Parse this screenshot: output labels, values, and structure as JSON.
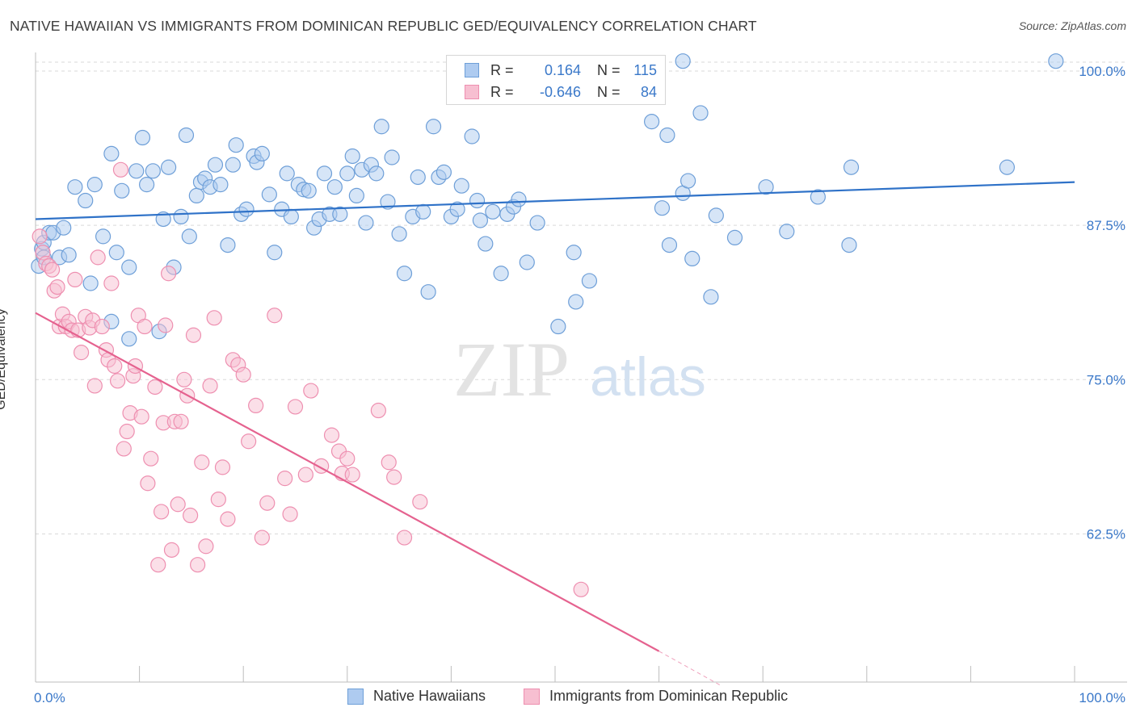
{
  "title": "NATIVE HAWAIIAN VS IMMIGRANTS FROM DOMINICAN REPUBLIC GED/EQUIVALENCY CORRELATION CHART",
  "source": "Source: ZipAtlas.com",
  "watermark": {
    "zip": "ZIP",
    "atlas": "atlas"
  },
  "legend_top": {
    "rows": [
      {
        "r_label": "R =",
        "r_value": "0.164",
        "n_label": "N =",
        "n_value": "115"
      },
      {
        "r_label": "R =",
        "r_value": "-0.646",
        "n_label": "N =",
        "n_value": "84"
      }
    ]
  },
  "legend_bottom": {
    "items": [
      {
        "label": "Native Hawaiians"
      },
      {
        "label": "Immigrants from Dominican Republic"
      }
    ]
  },
  "colors": {
    "blue_fill": "#aecbf0",
    "blue_stroke": "#6e9fd8",
    "blue_line": "#2f72c8",
    "pink_fill": "#f7bfd1",
    "pink_stroke": "#ee8fb0",
    "pink_line": "#e5628f",
    "grid": "#d9d9d9",
    "tick_text": "#3a78c9"
  },
  "chart_data": {
    "type": "scatter",
    "title": "NATIVE HAWAIIAN VS IMMIGRANTS FROM DOMINICAN REPUBLIC GED/EQUIVALENCY CORRELATION CHART",
    "xlabel": "",
    "ylabel": "GED/Equivalency",
    "xlim": [
      0,
      100
    ],
    "ylim": [
      50.5,
      101.5
    ],
    "x_tick_labels": [
      {
        "value": 0,
        "label": "0.0%"
      },
      {
        "value": 100,
        "label": "100.0%"
      }
    ],
    "y_ticks": [
      {
        "value": 100,
        "label": "100.0%"
      },
      {
        "value": 87.5,
        "label": "87.5%"
      },
      {
        "value": 75,
        "label": "75.0%"
      },
      {
        "value": 62.5,
        "label": "62.5%"
      }
    ],
    "x_minor_ticks": [
      0,
      10,
      20,
      30,
      40,
      50,
      60,
      70,
      80,
      90,
      100
    ],
    "grid": true,
    "series": [
      {
        "name": "Native Hawaiians",
        "color": "blue",
        "trend": {
          "x": [
            0,
            100
          ],
          "y": [
            88.0,
            91.0
          ]
        },
        "points": [
          [
            0.3,
            84.2
          ],
          [
            0.6,
            85.6
          ],
          [
            0.8,
            86.1
          ],
          [
            0.8,
            84.9
          ],
          [
            1.3,
            86.9
          ],
          [
            1.7,
            86.9
          ],
          [
            2.3,
            84.9
          ],
          [
            2.7,
            87.3
          ],
          [
            3.2,
            85.1
          ],
          [
            3.8,
            90.6
          ],
          [
            4.8,
            89.5
          ],
          [
            5.7,
            90.8
          ],
          [
            5.3,
            82.8
          ],
          [
            6.5,
            86.6
          ],
          [
            7.3,
            93.3
          ],
          [
            7.3,
            79.7
          ],
          [
            7.8,
            85.3
          ],
          [
            8.3,
            90.3
          ],
          [
            9.0,
            84.1
          ],
          [
            9.0,
            78.3
          ],
          [
            9.7,
            91.9
          ],
          [
            10.3,
            94.6
          ],
          [
            10.7,
            90.8
          ],
          [
            11.3,
            91.9
          ],
          [
            11.9,
            78.9
          ],
          [
            12.3,
            88.0
          ],
          [
            12.8,
            92.2
          ],
          [
            13.3,
            84.1
          ],
          [
            14.0,
            88.2
          ],
          [
            14.5,
            94.8
          ],
          [
            14.8,
            86.6
          ],
          [
            15.5,
            89.9
          ],
          [
            15.9,
            91.0
          ],
          [
            16.3,
            91.3
          ],
          [
            16.8,
            90.6
          ],
          [
            17.3,
            92.4
          ],
          [
            17.8,
            90.8
          ],
          [
            18.5,
            85.9
          ],
          [
            19.0,
            92.4
          ],
          [
            19.3,
            94.0
          ],
          [
            19.8,
            88.4
          ],
          [
            20.3,
            88.8
          ],
          [
            21.0,
            93.1
          ],
          [
            21.3,
            92.6
          ],
          [
            21.8,
            93.3
          ],
          [
            22.5,
            90.0
          ],
          [
            23.0,
            85.3
          ],
          [
            23.7,
            88.8
          ],
          [
            24.2,
            91.7
          ],
          [
            24.6,
            88.2
          ],
          [
            25.3,
            90.8
          ],
          [
            25.8,
            90.4
          ],
          [
            26.3,
            90.3
          ],
          [
            26.8,
            87.3
          ],
          [
            27.3,
            88.0
          ],
          [
            27.8,
            91.7
          ],
          [
            28.3,
            88.4
          ],
          [
            28.8,
            90.6
          ],
          [
            29.3,
            88.4
          ],
          [
            30.0,
            91.7
          ],
          [
            30.5,
            93.1
          ],
          [
            30.9,
            89.9
          ],
          [
            31.4,
            92.0
          ],
          [
            31.8,
            87.7
          ],
          [
            32.3,
            92.4
          ],
          [
            32.8,
            91.7
          ],
          [
            33.3,
            95.5
          ],
          [
            33.9,
            89.4
          ],
          [
            34.3,
            93.0
          ],
          [
            35.0,
            86.8
          ],
          [
            35.5,
            83.6
          ],
          [
            36.3,
            88.2
          ],
          [
            36.8,
            91.4
          ],
          [
            37.3,
            88.6
          ],
          [
            37.8,
            82.1
          ],
          [
            38.3,
            95.5
          ],
          [
            38.8,
            91.4
          ],
          [
            39.3,
            91.8
          ],
          [
            40.0,
            88.2
          ],
          [
            40.6,
            88.8
          ],
          [
            41.0,
            90.7
          ],
          [
            42.0,
            94.7
          ],
          [
            42.5,
            89.5
          ],
          [
            42.8,
            87.9
          ],
          [
            43.3,
            86.0
          ],
          [
            44.0,
            88.6
          ],
          [
            44.8,
            83.6
          ],
          [
            45.4,
            88.4
          ],
          [
            46.0,
            89.0
          ],
          [
            46.5,
            89.6
          ],
          [
            47.3,
            84.5
          ],
          [
            48.3,
            87.7
          ],
          [
            50.3,
            79.3
          ],
          [
            51.8,
            85.3
          ],
          [
            52.0,
            81.3
          ],
          [
            53.3,
            83.0
          ],
          [
            59.3,
            95.9
          ],
          [
            60.3,
            88.9
          ],
          [
            60.8,
            94.8
          ],
          [
            61.0,
            85.9
          ],
          [
            62.3,
            90.1
          ],
          [
            62.8,
            91.1
          ],
          [
            63.2,
            84.8
          ],
          [
            64.0,
            96.6
          ],
          [
            65.0,
            81.7
          ],
          [
            65.5,
            88.3
          ],
          [
            67.3,
            86.5
          ],
          [
            70.3,
            90.6
          ],
          [
            72.3,
            87.0
          ],
          [
            75.3,
            89.8
          ],
          [
            78.3,
            85.9
          ],
          [
            78.5,
            92.2
          ],
          [
            93.5,
            92.2
          ],
          [
            98.2,
            100.8
          ],
          [
            62.3,
            100.8
          ]
        ]
      },
      {
        "name": "Immigrants from Dominican Republic",
        "color": "pink",
        "trend": {
          "x": [
            0,
            60
          ],
          "y": [
            80.4,
            53.0
          ]
        },
        "trend_dashed": {
          "x": [
            60,
            66
          ],
          "y": [
            53.0,
            50.2
          ]
        },
        "points": [
          [
            0.4,
            86.6
          ],
          [
            0.7,
            85.3
          ],
          [
            1.0,
            84.4
          ],
          [
            1.3,
            84.2
          ],
          [
            1.6,
            83.9
          ],
          [
            1.8,
            82.2
          ],
          [
            2.1,
            82.5
          ],
          [
            2.3,
            79.3
          ],
          [
            2.6,
            80.3
          ],
          [
            2.9,
            79.3
          ],
          [
            3.2,
            79.7
          ],
          [
            3.5,
            79.0
          ],
          [
            3.8,
            83.1
          ],
          [
            4.1,
            79.0
          ],
          [
            4.4,
            77.2
          ],
          [
            4.8,
            80.1
          ],
          [
            5.2,
            79.2
          ],
          [
            5.5,
            79.8
          ],
          [
            5.7,
            74.5
          ],
          [
            6.0,
            84.9
          ],
          [
            6.4,
            79.3
          ],
          [
            6.8,
            77.4
          ],
          [
            7.0,
            76.6
          ],
          [
            7.3,
            82.8
          ],
          [
            7.6,
            76.1
          ],
          [
            7.9,
            74.9
          ],
          [
            8.2,
            92.0
          ],
          [
            8.5,
            69.4
          ],
          [
            8.8,
            70.8
          ],
          [
            9.1,
            72.3
          ],
          [
            9.4,
            75.3
          ],
          [
            9.6,
            76.1
          ],
          [
            9.9,
            80.2
          ],
          [
            10.2,
            72.0
          ],
          [
            10.5,
            79.3
          ],
          [
            10.8,
            66.6
          ],
          [
            11.1,
            68.6
          ],
          [
            11.5,
            74.4
          ],
          [
            11.8,
            60.0
          ],
          [
            12.1,
            64.3
          ],
          [
            12.3,
            71.5
          ],
          [
            12.5,
            79.4
          ],
          [
            12.8,
            83.6
          ],
          [
            13.1,
            61.2
          ],
          [
            13.4,
            71.6
          ],
          [
            13.7,
            64.9
          ],
          [
            14.0,
            71.6
          ],
          [
            14.3,
            75.0
          ],
          [
            14.6,
            73.7
          ],
          [
            14.9,
            64.0
          ],
          [
            15.2,
            78.6
          ],
          [
            15.6,
            60.0
          ],
          [
            16.0,
            68.3
          ],
          [
            16.4,
            61.5
          ],
          [
            16.8,
            74.5
          ],
          [
            17.2,
            80.0
          ],
          [
            17.6,
            65.3
          ],
          [
            18.0,
            67.9
          ],
          [
            18.5,
            63.7
          ],
          [
            19.0,
            76.6
          ],
          [
            19.5,
            76.2
          ],
          [
            20.0,
            75.4
          ],
          [
            20.5,
            70.0
          ],
          [
            21.2,
            72.9
          ],
          [
            21.8,
            62.2
          ],
          [
            22.3,
            65.0
          ],
          [
            23.0,
            80.2
          ],
          [
            24.0,
            67.0
          ],
          [
            24.5,
            64.1
          ],
          [
            25.0,
            72.8
          ],
          [
            26.0,
            67.3
          ],
          [
            26.5,
            74.1
          ],
          [
            27.5,
            68.0
          ],
          [
            28.5,
            70.5
          ],
          [
            29.2,
            69.2
          ],
          [
            29.5,
            67.4
          ],
          [
            30.0,
            68.6
          ],
          [
            30.5,
            67.3
          ],
          [
            33.0,
            72.5
          ],
          [
            34.0,
            68.3
          ],
          [
            34.5,
            67.1
          ],
          [
            35.5,
            62.2
          ],
          [
            37.0,
            65.1
          ],
          [
            52.5,
            58.0
          ]
        ]
      }
    ]
  }
}
